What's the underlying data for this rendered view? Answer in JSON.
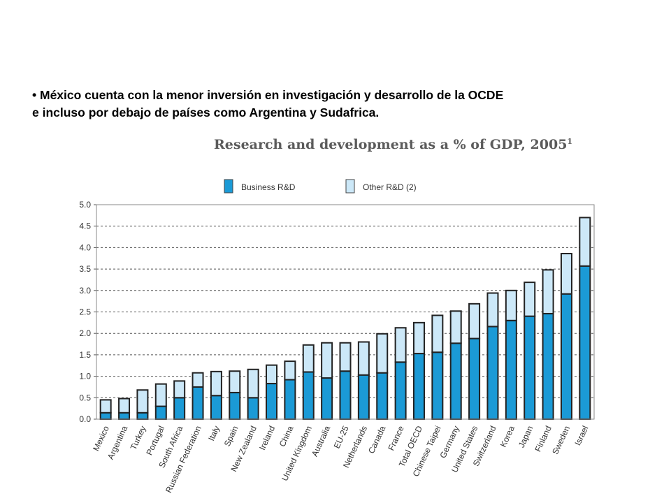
{
  "slide": {
    "bullet_line1": "• México cuenta con la menor inversión en investigación y desarrollo de la OCDE",
    "bullet_line2": "e incluso por debajo de países como Argentina y Sudafrica."
  },
  "chart_data": {
    "type": "bar",
    "stacked": true,
    "title": "Research and development as a % of GDP, 2005",
    "title_superscript": "1",
    "categories": [
      "Mexico",
      "Argentina",
      "Turkey",
      "Portugal",
      "South Africa",
      "Russian Federation",
      "Italy",
      "Spain",
      "New Zealand",
      "Ireland",
      "China",
      "United Kingdom",
      "Australia",
      "EU-25",
      "Netherlands",
      "Canada",
      "France",
      "Total OECD",
      "Chinese Taipei",
      "Germany",
      "United States",
      "Switzerland",
      "Korea",
      "Japan",
      "Finland",
      "Sweden",
      "Israel"
    ],
    "series": [
      {
        "name": "Business R&D",
        "color": "#1b9ad6",
        "values": [
          0.15,
          0.15,
          0.15,
          0.3,
          0.5,
          0.75,
          0.55,
          0.62,
          0.5,
          0.83,
          0.92,
          1.1,
          0.96,
          1.12,
          1.03,
          1.08,
          1.33,
          1.53,
          1.56,
          1.77,
          1.88,
          2.16,
          2.3,
          2.4,
          2.46,
          2.92,
          3.57
        ]
      },
      {
        "name": "Other R&D (2)",
        "color": "#cce8f8",
        "values": [
          0.3,
          0.33,
          0.53,
          0.52,
          0.39,
          0.33,
          0.56,
          0.5,
          0.66,
          0.43,
          0.43,
          0.63,
          0.82,
          0.66,
          0.77,
          0.91,
          0.8,
          0.72,
          0.86,
          0.75,
          0.81,
          0.78,
          0.7,
          0.79,
          1.02,
          0.94,
          1.13
        ]
      }
    ],
    "ylim": [
      0,
      5
    ],
    "yticks": [
      "0.0",
      "0.5",
      "1.0",
      "1.5",
      "2.0",
      "2.5",
      "3.0",
      "3.5",
      "4.0",
      "4.5",
      "5.0"
    ],
    "grid": "dashed horizontal",
    "legend_position": "top"
  }
}
